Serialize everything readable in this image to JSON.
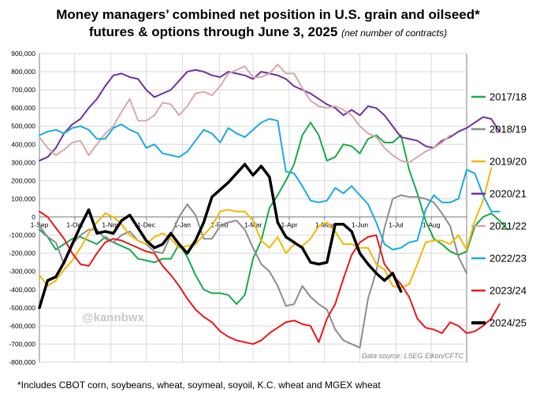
{
  "chart_data": {
    "type": "line",
    "title": "Money managers’ combined net position in U.S. grain and oilseed* futures & options through June 3, 2025",
    "title_line1": "Money managers’ combined net position in U.S. grain and oilseed*",
    "title_line2": "futures & options through June 3, 2025",
    "subtitle": "(net number of contracts)",
    "xlabel": "",
    "ylabel": "",
    "ylim": [
      -800000,
      900000
    ],
    "y_ticks": [
      900000,
      800000,
      700000,
      600000,
      500000,
      400000,
      300000,
      200000,
      100000,
      0,
      -100000,
      -200000,
      -300000,
      -400000,
      -500000,
      -600000,
      -700000,
      -800000
    ],
    "y_tick_labels": [
      "900,000",
      "800,000",
      "700,000",
      "600,000",
      "500,000",
      "400,000",
      "300,000",
      "200,000",
      "100,000",
      "0",
      "-100,000",
      "-200,000",
      "-300,000",
      "-400,000",
      "-500,000",
      "-600,000",
      "-700,000",
      "-800,000"
    ],
    "x_axis_unit": "weeks since 1-Sep",
    "xlim": [
      0,
      52
    ],
    "x_ticks": [
      0,
      4.3,
      8.7,
      13,
      17.4,
      21.9,
      26,
      30.4,
      34.7,
      39,
      43.4,
      47.7
    ],
    "x_tick_labels": [
      "1-Sep",
      "1-Oct",
      "1-Nov",
      "1-Dec",
      "1-Jan",
      "1-Feb",
      "1-Mar",
      "1-Apr",
      "1-May",
      "1-Jun",
      "1-Jul",
      "1-Aug"
    ],
    "grid": true,
    "legend_position": "right",
    "series": [
      {
        "name": "2017/18",
        "color": "#1aa84a",
        "width": 2,
        "values": [
          -70000,
          -110000,
          -180000,
          -150000,
          -120000,
          -110000,
          -130000,
          -150000,
          -110000,
          -140000,
          -160000,
          -180000,
          -230000,
          -240000,
          -250000,
          -230000,
          -230000,
          -150000,
          -220000,
          -320000,
          -400000,
          -420000,
          -420000,
          -430000,
          -480000,
          -430000,
          -230000,
          -130000,
          50000,
          120000,
          200000,
          290000,
          450000,
          520000,
          450000,
          310000,
          330000,
          400000,
          390000,
          350000,
          430000,
          450000,
          410000,
          410000,
          450000,
          260000,
          130000,
          -20000,
          -120000,
          -150000,
          -190000,
          -210000,
          -190000,
          -50000,
          0,
          20000,
          -20000,
          -70000
        ]
      },
      {
        "name": "2018/19",
        "color": "#8c8c8c",
        "width": 2,
        "values": [
          -50000,
          -110000,
          -140000,
          -260000,
          -150000,
          -100000,
          -70000,
          -70000,
          -120000,
          -140000,
          -100000,
          -80000,
          -130000,
          -150000,
          -190000,
          -200000,
          -100000,
          0,
          70000,
          10000,
          -120000,
          -120000,
          -50000,
          -30000,
          -20000,
          -70000,
          -170000,
          -260000,
          -300000,
          -380000,
          -490000,
          -480000,
          -380000,
          -440000,
          -480000,
          -510000,
          -620000,
          -680000,
          -700000,
          -720000,
          -450000,
          -300000,
          -60000,
          100000,
          120000,
          110000,
          110000,
          100000,
          80000,
          20000,
          -50000,
          -220000,
          -310000
        ]
      },
      {
        "name": "2019/20",
        "color": "#f2b800",
        "width": 2,
        "values": [
          -320000,
          -380000,
          -350000,
          -290000,
          -240000,
          -170000,
          -90000,
          -30000,
          20000,
          0,
          -40000,
          -100000,
          -130000,
          -150000,
          -110000,
          -90000,
          -120000,
          -170000,
          -160000,
          -150000,
          -100000,
          -50000,
          30000,
          40000,
          30000,
          30000,
          -20000,
          -130000,
          -170000,
          -110000,
          -200000,
          -150000,
          -160000,
          -120000,
          -50000,
          -30000,
          -80000,
          -150000,
          -150000,
          -170000,
          -170000,
          -260000,
          -290000,
          -380000,
          -390000,
          -370000,
          -260000,
          -140000,
          -130000,
          -130000,
          -150000,
          -100000,
          -180000,
          -20000,
          90000,
          270000
        ]
      },
      {
        "name": "2020/21",
        "color": "#7030a0",
        "width": 2,
        "values": [
          310000,
          330000,
          380000,
          460000,
          510000,
          540000,
          600000,
          650000,
          720000,
          780000,
          790000,
          770000,
          760000,
          700000,
          660000,
          680000,
          700000,
          750000,
          800000,
          810000,
          800000,
          780000,
          770000,
          800000,
          790000,
          780000,
          760000,
          800000,
          790000,
          780000,
          760000,
          720000,
          700000,
          680000,
          650000,
          620000,
          600000,
          560000,
          590000,
          560000,
          610000,
          600000,
          560000,
          500000,
          440000,
          430000,
          420000,
          390000,
          380000,
          420000,
          440000,
          470000,
          490000,
          520000,
          550000,
          540000,
          470000
        ]
      },
      {
        "name": "2021/22",
        "color": "#d8a8a8",
        "width": 2,
        "values": [
          440000,
          380000,
          340000,
          370000,
          410000,
          420000,
          340000,
          400000,
          460000,
          500000,
          580000,
          650000,
          530000,
          530000,
          560000,
          630000,
          620000,
          560000,
          610000,
          680000,
          690000,
          670000,
          720000,
          790000,
          810000,
          830000,
          770000,
          770000,
          790000,
          840000,
          790000,
          790000,
          710000,
          640000,
          610000,
          600000,
          610000,
          590000,
          560000,
          500000,
          460000,
          440000,
          380000,
          340000,
          310000,
          300000,
          330000,
          360000,
          380000,
          410000,
          450000
        ]
      },
      {
        "name": "2022/23",
        "color": "#19a9e5",
        "width": 2,
        "values": [
          450000,
          470000,
          480000,
          460000,
          490000,
          500000,
          480000,
          430000,
          430000,
          490000,
          510000,
          480000,
          460000,
          380000,
          400000,
          350000,
          340000,
          330000,
          360000,
          420000,
          480000,
          460000,
          410000,
          490000,
          460000,
          440000,
          480000,
          520000,
          540000,
          530000,
          250000,
          240000,
          170000,
          90000,
          80000,
          90000,
          160000,
          130000,
          170000,
          120000,
          70000,
          -30000,
          -150000,
          -180000,
          -170000,
          -140000,
          -130000,
          40000,
          120000,
          80000,
          80000,
          100000,
          260000,
          240000,
          120000,
          30000,
          30000
        ]
      },
      {
        "name": "2023/24",
        "color": "#e8191b",
        "width": 2,
        "values": [
          30000,
          0,
          -60000,
          -120000,
          -200000,
          -260000,
          -270000,
          -200000,
          -140000,
          -120000,
          -130000,
          -150000,
          -170000,
          -190000,
          -200000,
          -270000,
          -320000,
          -380000,
          -450000,
          -510000,
          -550000,
          -580000,
          -630000,
          -660000,
          -680000,
          -690000,
          -700000,
          -680000,
          -640000,
          -610000,
          -580000,
          -570000,
          -590000,
          -600000,
          -690000,
          -560000,
          -480000,
          -340000,
          -210000,
          -140000,
          -110000,
          -100000,
          -260000,
          -320000,
          -370000,
          -440000,
          -560000,
          -610000,
          -620000,
          -640000,
          -580000,
          -600000,
          -640000,
          -630000,
          -600000,
          -560000,
          -480000
        ]
      },
      {
        "name": "2024/25",
        "color": "#000000",
        "width": 3.5,
        "values": [
          -500000,
          -350000,
          -330000,
          -250000,
          -150000,
          -50000,
          40000,
          -90000,
          -80000,
          -90000,
          -20000,
          10000,
          -60000,
          -130000,
          -170000,
          -150000,
          -90000,
          -150000,
          -200000,
          -130000,
          -30000,
          110000,
          150000,
          190000,
          240000,
          290000,
          230000,
          280000,
          220000,
          -30000,
          -110000,
          -140000,
          -170000,
          -250000,
          -260000,
          -250000,
          -40000,
          -40000,
          -80000,
          -200000,
          -260000,
          -310000,
          -350000,
          -310000,
          -410000
        ]
      }
    ]
  },
  "watermark": "@kannbwx",
  "source": "Data source: LSEG Eikon/CFTC",
  "footnote": "*Includes CBOT corn, soybeans, wheat, soymeal, soyoil, K.C. wheat and MGEX wheat"
}
